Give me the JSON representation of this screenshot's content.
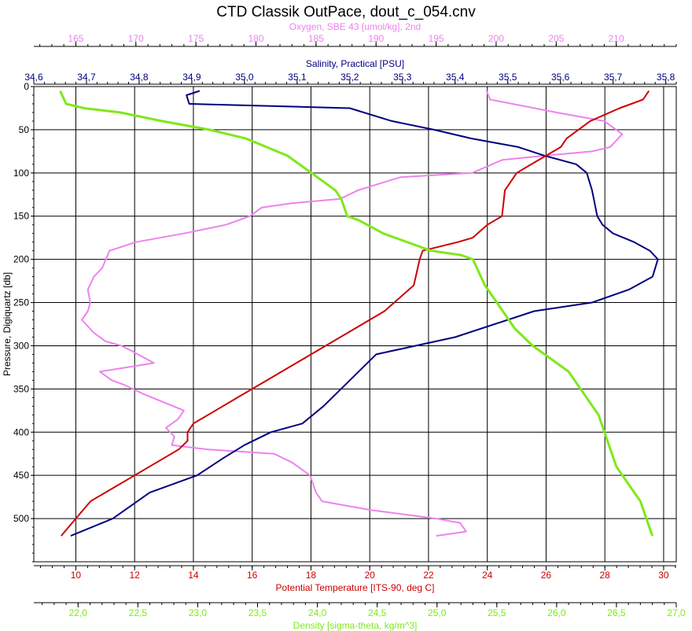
{
  "chart_data": {
    "type": "line",
    "title": "CTD Classik OutPace, dout_c_054.cnv",
    "grid": true,
    "y_axis": {
      "label": "Pressure, Digiquartz [db]",
      "range": [
        0,
        550
      ],
      "inverted": true,
      "ticks": [
        "0",
        "50",
        "100",
        "150",
        "200",
        "250",
        "300",
        "350",
        "400",
        "450",
        "500"
      ]
    },
    "top_axes": [
      {
        "key": "oxygen",
        "label": "Oxygen, SBE 43 [umol/kg], 2nd",
        "color": "#ee82ee",
        "range": [
          161.5,
          215
        ],
        "ticks": [
          "165",
          "170",
          "175",
          "180",
          "185",
          "190",
          "195",
          "200",
          "205",
          "210"
        ]
      },
      {
        "key": "salinity",
        "label": "Salinity, Practical [PSU]",
        "color": "#000080",
        "range": [
          34.6,
          35.82
        ],
        "ticks": [
          "34,6",
          "34,7",
          "34,8",
          "34,9",
          "35,0",
          "35,1",
          "35,2",
          "35,3",
          "35,4",
          "35,5",
          "35,6",
          "35,7",
          "35,8"
        ]
      }
    ],
    "bottom_axes": [
      {
        "key": "temperature",
        "label": "Potential Temperature [ITS-90, deg C]",
        "color": "#cc0000",
        "range": [
          8.57,
          30.43
        ],
        "ticks": [
          "10",
          "12",
          "14",
          "16",
          "18",
          "20",
          "22",
          "24",
          "26",
          "28",
          "30"
        ]
      },
      {
        "key": "density",
        "label": "Density [sigma-theta, kg/m^3]",
        "color": "#7fe81a",
        "range": [
          21.63,
          27.0
        ],
        "ticks": [
          "22,0",
          "22,5",
          "23,0",
          "23,5",
          "24,0",
          "24,5",
          "25,0",
          "25,5",
          "26,0",
          "26,5",
          "27,0"
        ]
      }
    ],
    "series": [
      {
        "axis": "oxygen",
        "color": "#ee82ee",
        "x": [
          199.2,
          199.5,
          205,
          209,
          210.5,
          209.5,
          208,
          204,
          200.5,
          198,
          192,
          188.5,
          187,
          183,
          180.5,
          180,
          179.5,
          177.5,
          174,
          170,
          167.8,
          167.2,
          166.5,
          166,
          166.2,
          166,
          165.5,
          166.5,
          167.5,
          168.8,
          169.5,
          171.5,
          167,
          168,
          169,
          170.5,
          174,
          173.5,
          172.5,
          173.2,
          173,
          176,
          181.5,
          183,
          184.5,
          185,
          185.5,
          189.5,
          195,
          197,
          197.5,
          195
        ],
        "y": [
          5,
          15,
          30,
          40,
          55,
          70,
          75,
          80,
          85,
          100,
          105,
          120,
          130,
          135,
          140,
          145,
          150,
          160,
          170,
          180,
          190,
          210,
          220,
          235,
          250,
          260,
          270,
          285,
          295,
          300,
          305,
          320,
          330,
          340,
          345,
          355,
          375,
          385,
          395,
          405,
          415,
          420,
          425,
          435,
          450,
          470,
          480,
          490,
          500,
          505,
          515,
          520
        ]
      },
      {
        "axis": "salinity",
        "color": "#000080",
        "x": [
          34.915,
          34.89,
          34.895,
          35.2,
          35.28,
          35.36,
          35.43,
          35.52,
          35.57,
          35.63,
          35.65,
          35.66,
          35.67,
          35.68,
          35.7,
          35.74,
          35.77,
          35.785,
          35.775,
          35.73,
          35.66,
          35.55,
          35.4,
          35.25,
          35.2,
          35.15,
          35.11,
          35.05,
          35.0,
          34.96,
          34.91,
          34.82,
          34.75,
          34.67
        ],
        "y": [
          5,
          10,
          20,
          25,
          40,
          50,
          60,
          70,
          80,
          90,
          100,
          120,
          150,
          160,
          170,
          180,
          190,
          200,
          220,
          235,
          250,
          260,
          290,
          310,
          340,
          370,
          390,
          400,
          415,
          430,
          450,
          470,
          500,
          520
        ]
      },
      {
        "axis": "temperature",
        "color": "#cc0000",
        "x": [
          29.5,
          29.3,
          28.5,
          27.5,
          26.7,
          26.5,
          26,
          25.5,
          25,
          24.6,
          24.5,
          24,
          23.5,
          23,
          21.8,
          21.7,
          21.5,
          20.5,
          19.5,
          18.5,
          17.5,
          16.5,
          15.5,
          15,
          14.5,
          14,
          13.8,
          13.8,
          13.5,
          13,
          12.5,
          12,
          11,
          10.5,
          10,
          9.5
        ],
        "y": [
          5,
          15,
          25,
          40,
          60,
          70,
          80,
          90,
          100,
          120,
          150,
          160,
          175,
          180,
          190,
          200,
          230,
          260,
          280,
          300,
          320,
          340,
          360,
          370,
          380,
          390,
          400,
          410,
          420,
          430,
          440,
          450,
          470,
          480,
          500,
          520
        ]
      },
      {
        "axis": "density",
        "color": "#7fe81a",
        "x": [
          21.85,
          21.9,
          22.05,
          22.35,
          22.7,
          23.1,
          23.4,
          23.75,
          23.95,
          24.15,
          24.2,
          24.25,
          24.35,
          24.55,
          24.95,
          25.2,
          25.3,
          25.4,
          25.5,
          25.65,
          25.8,
          26.0,
          26.1,
          26.25,
          26.35,
          26.45,
          26.5,
          26.6,
          26.7,
          26.8
        ],
        "y": [
          5,
          20,
          25,
          30,
          40,
          50,
          60,
          80,
          100,
          120,
          130,
          150,
          155,
          170,
          190,
          195,
          200,
          230,
          250,
          280,
          300,
          320,
          330,
          360,
          380,
          420,
          440,
          460,
          480,
          520
        ]
      }
    ]
  }
}
